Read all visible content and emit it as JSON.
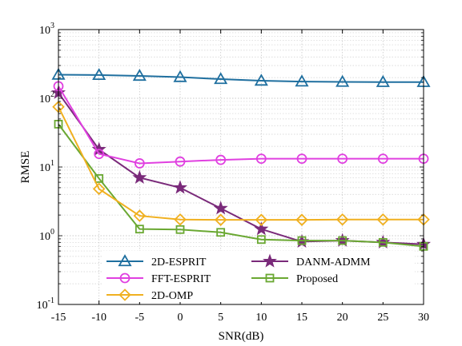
{
  "chart_data": {
    "type": "line",
    "xlabel": "SNR(dB)",
    "ylabel": "RMSE",
    "x": [
      -15,
      -10,
      -5,
      0,
      5,
      10,
      15,
      20,
      25,
      30
    ],
    "xlim": [
      -15,
      30
    ],
    "ylim": [
      0.1,
      1000
    ],
    "yscale": "log",
    "grid": true,
    "x_ticks": [
      "-15",
      "-10",
      "-5",
      "0",
      "5",
      "10",
      "15",
      "20",
      "25",
      "30"
    ],
    "y_ticks": [
      {
        "base": "10",
        "exp": "-1",
        "value": 0.1
      },
      {
        "base": "10",
        "exp": "0",
        "value": 1
      },
      {
        "base": "10",
        "exp": "1",
        "value": 10
      },
      {
        "base": "10",
        "exp": "2",
        "value": 100
      },
      {
        "base": "10",
        "exp": "3",
        "value": 1000
      }
    ],
    "legend_position": "bottom",
    "series": [
      {
        "name": "2D-ESPRIT",
        "color": "#1f6f9f",
        "marker": "triangle",
        "values": [
          220,
          218,
          212,
          203,
          190,
          180,
          175,
          173,
          172,
          172
        ]
      },
      {
        "name": "DANM-ADMM",
        "color": "#7a2a7a",
        "marker": "star",
        "values": [
          120,
          18,
          7,
          5,
          2.5,
          1.25,
          0.82,
          0.85,
          0.8,
          0.75
        ]
      },
      {
        "name": "FFT-ESPRIT",
        "color": "#e040e0",
        "marker": "circle",
        "values": [
          150,
          15.5,
          11.3,
          12,
          12.7,
          13.2,
          13.2,
          13.2,
          13.2,
          13.2
        ]
      },
      {
        "name": "Proposed",
        "color": "#6aa832",
        "marker": "square",
        "values": [
          42,
          6.8,
          1.25,
          1.23,
          1.12,
          0.88,
          0.85,
          0.85,
          0.8,
          0.7
        ]
      },
      {
        "name": "2D-OMP",
        "color": "#f0b020",
        "marker": "diamond",
        "values": [
          75,
          4.8,
          1.95,
          1.72,
          1.7,
          1.7,
          1.7,
          1.72,
          1.72,
          1.72
        ]
      }
    ]
  }
}
